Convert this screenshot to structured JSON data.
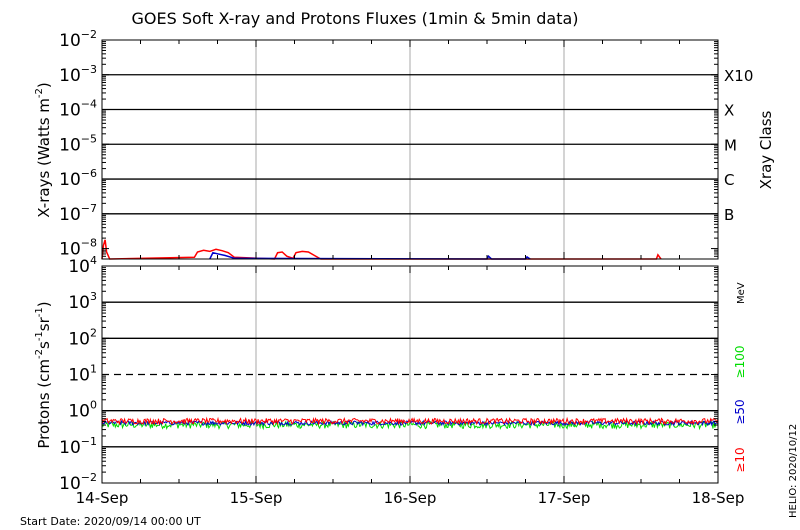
{
  "chart_data": {
    "type": "line",
    "title": "GOES Soft X-ray and Protons Fluxes   (1min & 5min data)",
    "x_ticks": [
      "14-Sep",
      "15-Sep",
      "16-Sep",
      "17-Sep",
      "18-Sep"
    ],
    "x_range_days": [
      0,
      4
    ],
    "footer_start": "Start Date: 2020/09/14 00:00 UT",
    "side_note": "HELIO: 2020/10/12",
    "colors": {
      "red": "#ff0000",
      "green": "#00dd00",
      "blue": "#0000cc",
      "black": "#000000",
      "gray": "#aaaaaa"
    },
    "xray_panel": {
      "ylabel_parts": [
        "X-rays (Watts m",
        "-2",
        ")"
      ],
      "yscale": "log",
      "ylim_exp": [
        -8.3,
        -2
      ],
      "tick_exponents": [
        -8,
        -7,
        -6,
        -5,
        -4,
        -3,
        -2
      ],
      "gridline_exponents": [
        -7,
        -6,
        -5,
        -4,
        -3
      ],
      "class_axis_label": "Xray Class",
      "class_labels": [
        {
          "label": "B",
          "exp": -7
        },
        {
          "label": "C",
          "exp": -6
        },
        {
          "label": "M",
          "exp": -5
        },
        {
          "label": "X",
          "exp": -4
        },
        {
          "label": "X10",
          "exp": -3
        }
      ],
      "series": [
        {
          "color_key": "red",
          "points": [
            [
              0.0,
              -8.3
            ],
            [
              0.01,
              -7.9
            ],
            [
              0.02,
              -7.75
            ],
            [
              0.03,
              -8.1
            ],
            [
              0.05,
              -8.3
            ],
            [
              0.6,
              -8.25
            ],
            [
              0.62,
              -8.1
            ],
            [
              0.66,
              -8.05
            ],
            [
              0.7,
              -8.08
            ],
            [
              0.74,
              -8.02
            ],
            [
              0.78,
              -8.06
            ],
            [
              0.82,
              -8.12
            ],
            [
              0.86,
              -8.25
            ],
            [
              1.12,
              -8.3
            ],
            [
              1.14,
              -8.12
            ],
            [
              1.17,
              -8.1
            ],
            [
              1.2,
              -8.22
            ],
            [
              1.24,
              -8.28
            ],
            [
              1.26,
              -8.12
            ],
            [
              1.3,
              -8.08
            ],
            [
              1.34,
              -8.1
            ],
            [
              1.38,
              -8.2
            ],
            [
              1.42,
              -8.3
            ],
            [
              3.6,
              -8.3
            ],
            [
              3.61,
              -8.18
            ],
            [
              3.63,
              -8.3
            ]
          ]
        },
        {
          "color_key": "blue",
          "points": [
            [
              0.7,
              -8.3
            ],
            [
              0.72,
              -8.12
            ],
            [
              0.75,
              -8.15
            ],
            [
              0.8,
              -8.2
            ],
            [
              0.86,
              -8.28
            ],
            [
              2.5,
              -8.3
            ],
            [
              2.51,
              -8.22
            ],
            [
              2.53,
              -8.3
            ],
            [
              2.75,
              -8.3
            ],
            [
              2.76,
              -8.24
            ],
            [
              2.78,
              -8.3
            ]
          ]
        }
      ]
    },
    "proton_panel": {
      "ylabel_parts": [
        "Protons (cm",
        "-2",
        "s",
        "-1",
        "sr",
        "-1",
        ")"
      ],
      "yscale": "log",
      "ylim_exp": [
        -2,
        4
      ],
      "tick_exponents": [
        -2,
        -1,
        0,
        1,
        2,
        3,
        4
      ],
      "gridline_exponents": [
        -1,
        0,
        2,
        3
      ],
      "dashed_exponent": 1,
      "energy_unit": "MeV",
      "energy_labels": [
        {
          "label": "≥100",
          "color_key": "green"
        },
        {
          "label": "≥50",
          "color_key": "blue"
        },
        {
          "label": "≥10",
          "color_key": "red"
        }
      ],
      "series": [
        {
          "name": "≥10",
          "color_key": "red",
          "base": 0.52,
          "amp": 0.09
        },
        {
          "name": "≥50",
          "color_key": "blue",
          "base": 0.46,
          "amp": 0.06
        },
        {
          "name": "≥100",
          "color_key": "green",
          "base": 0.41,
          "amp": 0.09
        }
      ]
    }
  }
}
